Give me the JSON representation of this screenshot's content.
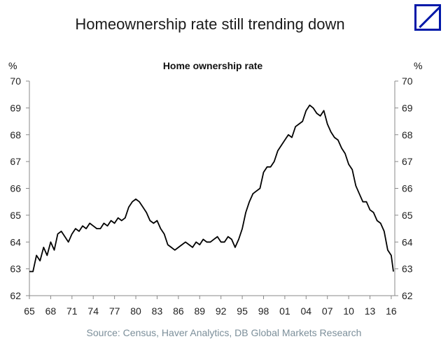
{
  "header": {
    "title": "Homeownership rate still trending down",
    "logo": "deutsche-bank-logo",
    "brand_color": "#0018a8"
  },
  "source": "Source: Census, Haver Analytics, DB Global Markets Research",
  "chart_data": {
    "type": "line",
    "title": "Home ownership rate",
    "ylabel_left": "%",
    "ylabel_right": "%",
    "xlabel": "",
    "xlim": [
      1965,
      2016.5
    ],
    "ylim": [
      62,
      70
    ],
    "x_ticks": [
      {
        "value": 1965,
        "label": "65"
      },
      {
        "value": 1968,
        "label": "68"
      },
      {
        "value": 1971,
        "label": "71"
      },
      {
        "value": 1974,
        "label": "74"
      },
      {
        "value": 1977,
        "label": "77"
      },
      {
        "value": 1980,
        "label": "80"
      },
      {
        "value": 1983,
        "label": "83"
      },
      {
        "value": 1986,
        "label": "86"
      },
      {
        "value": 1989,
        "label": "89"
      },
      {
        "value": 1992,
        "label": "92"
      },
      {
        "value": 1995,
        "label": "95"
      },
      {
        "value": 1998,
        "label": "98"
      },
      {
        "value": 2001,
        "label": "01"
      },
      {
        "value": 2004,
        "label": "04"
      },
      {
        "value": 2007,
        "label": "07"
      },
      {
        "value": 2010,
        "label": "10"
      },
      {
        "value": 2013,
        "label": "13"
      },
      {
        "value": 2016,
        "label": "16"
      }
    ],
    "y_ticks": [
      62,
      63,
      64,
      65,
      66,
      67,
      68,
      69,
      70
    ],
    "grid": false,
    "line_color": "#000000",
    "series": [
      {
        "x": [
          1965.0,
          1965.5,
          1966.0,
          1966.5,
          1967.0,
          1967.5,
          1968.0,
          1968.5,
          1969.0,
          1969.5,
          1970.0,
          1970.5,
          1971.0,
          1971.5,
          1972.0,
          1972.5,
          1973.0,
          1973.5,
          1974.0,
          1974.5,
          1975.0,
          1975.5,
          1976.0,
          1976.5,
          1977.0,
          1977.5,
          1978.0,
          1978.5,
          1979.0,
          1979.5,
          1980.0,
          1980.5,
          1981.0,
          1981.5,
          1982.0,
          1982.5,
          1983.0,
          1983.5,
          1984.0,
          1984.5,
          1985.0,
          1985.5,
          1986.0,
          1986.5,
          1987.0,
          1987.5,
          1988.0,
          1988.5,
          1989.0,
          1989.5,
          1990.0,
          1990.5,
          1991.0,
          1991.5,
          1992.0,
          1992.5,
          1993.0,
          1993.5,
          1994.0,
          1994.5,
          1995.0,
          1995.5,
          1996.0,
          1996.5,
          1997.0,
          1997.5,
          1998.0,
          1998.5,
          1999.0,
          1999.5,
          2000.0,
          2000.5,
          2001.0,
          2001.5,
          2002.0,
          2002.5,
          2003.0,
          2003.5,
          2004.0,
          2004.5,
          2005.0,
          2005.5,
          2006.0,
          2006.5,
          2007.0,
          2007.5,
          2008.0,
          2008.5,
          2009.0,
          2009.5,
          2010.0,
          2010.5,
          2011.0,
          2011.5,
          2012.0,
          2012.5,
          2013.0,
          2013.5,
          2014.0,
          2014.5,
          2015.0,
          2015.5,
          2016.0,
          2016.3
        ],
        "values": [
          62.9,
          62.9,
          63.5,
          63.3,
          63.8,
          63.5,
          64.0,
          63.7,
          64.3,
          64.4,
          64.2,
          64.0,
          64.3,
          64.5,
          64.4,
          64.6,
          64.5,
          64.7,
          64.6,
          64.5,
          64.5,
          64.7,
          64.6,
          64.8,
          64.7,
          64.9,
          64.8,
          64.9,
          65.3,
          65.5,
          65.6,
          65.5,
          65.3,
          65.1,
          64.8,
          64.7,
          64.8,
          64.5,
          64.3,
          63.9,
          63.8,
          63.7,
          63.8,
          63.9,
          64.0,
          63.9,
          63.8,
          64.0,
          63.9,
          64.1,
          64.0,
          64.0,
          64.1,
          64.2,
          64.0,
          64.0,
          64.2,
          64.1,
          63.8,
          64.1,
          64.5,
          65.1,
          65.5,
          65.8,
          65.9,
          66.0,
          66.6,
          66.8,
          66.8,
          67.0,
          67.4,
          67.6,
          67.8,
          68.0,
          67.9,
          68.3,
          68.4,
          68.5,
          68.9,
          69.1,
          69.0,
          68.8,
          68.7,
          68.9,
          68.4,
          68.1,
          67.9,
          67.8,
          67.5,
          67.3,
          66.9,
          66.7,
          66.1,
          65.8,
          65.5,
          65.5,
          65.2,
          65.1,
          64.8,
          64.7,
          64.4,
          63.7,
          63.5,
          62.9
        ]
      }
    ]
  }
}
